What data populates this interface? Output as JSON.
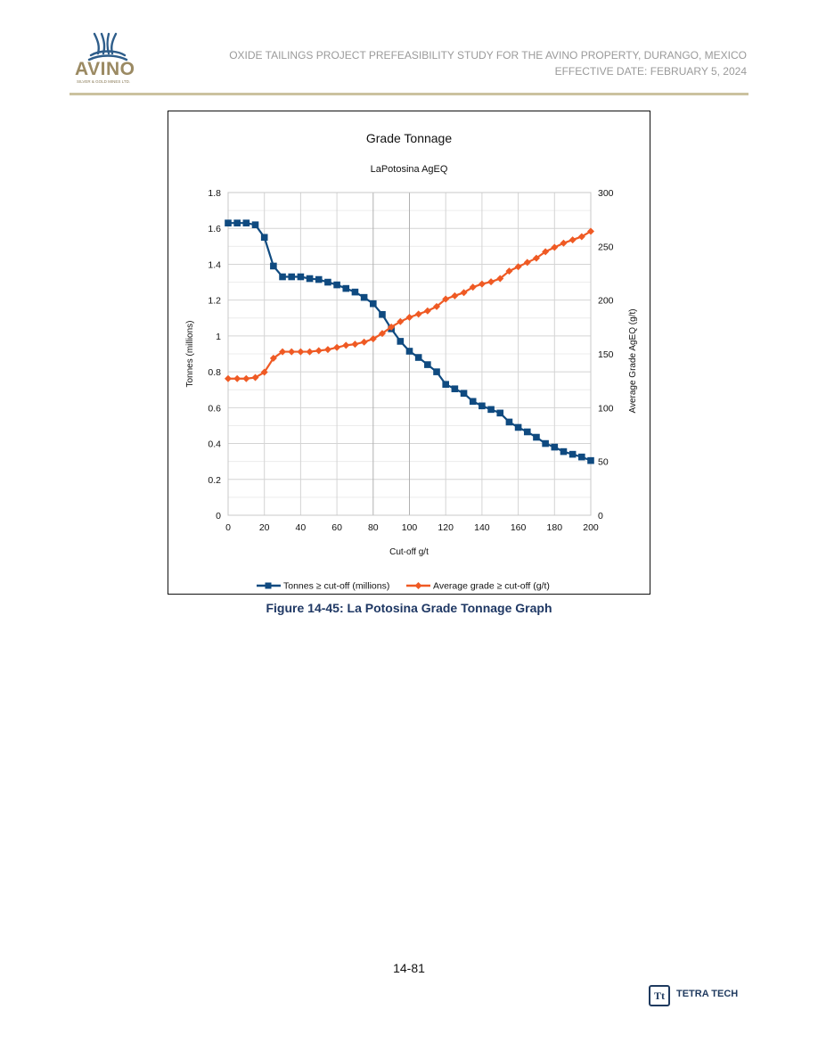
{
  "header": {
    "logo_word": "AVINO",
    "logo_sub": "SILVER & GOLD MINES LTD.",
    "title_line1": "OXIDE TAILINGS PROJECT PREFEASIBILITY STUDY FOR THE AVINO PROPERTY, DURANGO, MEXICO",
    "title_line2": "EFFECTIVE DATE: FEBRUARY 5, 2024"
  },
  "colors": {
    "tonnes_series": "#0f4a80",
    "grade_series": "#ef5a24",
    "rule": "#cbc29f",
    "caption": "#1f3864"
  },
  "chart_data": {
    "type": "line",
    "title": "Grade Tonnage",
    "subtitle": "LaPotosina AgEQ",
    "xlabel": "Cut-off g/t",
    "ylabel": "Tonnes (millions)",
    "y2label": "Average Grade AgEQ (g/t)",
    "xlim": [
      0,
      200
    ],
    "ylim": [
      0,
      1.8
    ],
    "y2lim": [
      0,
      300
    ],
    "x_ticks": [
      "0",
      "20",
      "40",
      "60",
      "80",
      "100",
      "120",
      "140",
      "160",
      "180",
      "200"
    ],
    "y_ticks": [
      "0",
      "0.2",
      "0.4",
      "0.6",
      "0.8",
      "1",
      "1.2",
      "1.4",
      "1.6",
      "1.8"
    ],
    "y2_ticks": [
      "0",
      "50",
      "100",
      "150",
      "200",
      "250",
      "300"
    ],
    "grid": true,
    "legend_position": "bottom",
    "x": [
      0,
      5,
      10,
      15,
      20,
      25,
      30,
      35,
      40,
      45,
      50,
      55,
      60,
      65,
      70,
      75,
      80,
      85,
      90,
      95,
      100,
      105,
      110,
      115,
      120,
      125,
      130,
      135,
      140,
      145,
      150,
      155,
      160,
      165,
      170,
      175,
      180,
      185,
      190,
      195,
      200
    ],
    "series": [
      {
        "name": "Tonnes ≥ cut-off (millions)",
        "axis": "left",
        "marker": "square",
        "values": [
          1.63,
          1.63,
          1.63,
          1.62,
          1.55,
          1.39,
          1.33,
          1.33,
          1.33,
          1.32,
          1.315,
          1.3,
          1.285,
          1.265,
          1.245,
          1.215,
          1.18,
          1.12,
          1.04,
          0.97,
          0.915,
          0.88,
          0.84,
          0.8,
          0.73,
          0.705,
          0.68,
          0.635,
          0.61,
          0.59,
          0.57,
          0.52,
          0.49,
          0.465,
          0.435,
          0.4,
          0.38,
          0.355,
          0.34,
          0.325,
          0.305
        ]
      },
      {
        "name": "Average grade ≥ cut-off (g/t)",
        "axis": "right",
        "marker": "diamond",
        "values": [
          127,
          127,
          127,
          128,
          133,
          146,
          152,
          152,
          152,
          152,
          153,
          154,
          156,
          158,
          159,
          161,
          164,
          169,
          175,
          180,
          184,
          187,
          190,
          194,
          201,
          204,
          207,
          212,
          215,
          217,
          220,
          227,
          231,
          235,
          239,
          245,
          249,
          253,
          256,
          259,
          264
        ]
      }
    ]
  },
  "caption": "Figure 14-45: La Potosina Grade Tonnage Graph",
  "footer": {
    "page_number": "14-81",
    "brand_mark": "Tt",
    "brand_name": "TETRA TECH"
  }
}
